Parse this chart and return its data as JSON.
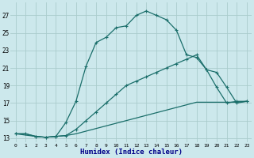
{
  "xlabel": "Humidex (Indice chaleur)",
  "background_color": "#cce8ec",
  "grid_color": "#aacccc",
  "line_color": "#1a6e6a",
  "xlim": [
    -0.5,
    23.5
  ],
  "ylim": [
    12.5,
    28.5
  ],
  "xticks": [
    0,
    1,
    2,
    3,
    4,
    5,
    6,
    7,
    8,
    9,
    10,
    11,
    12,
    13,
    14,
    15,
    16,
    17,
    18,
    19,
    20,
    21,
    22,
    23
  ],
  "yticks": [
    13,
    15,
    17,
    19,
    21,
    23,
    25,
    27
  ],
  "series1_x": [
    0,
    1,
    2,
    3,
    4,
    5,
    6,
    7,
    8,
    9,
    10,
    11,
    12,
    13,
    14,
    15,
    16,
    17,
    18,
    19,
    20,
    21,
    22,
    23
  ],
  "series1_y": [
    13.5,
    13.5,
    13.2,
    13.1,
    13.2,
    14.8,
    17.2,
    21.2,
    23.9,
    24.5,
    25.6,
    25.8,
    27.0,
    27.5,
    27.0,
    26.5,
    25.3,
    22.5,
    22.2,
    20.8,
    18.8,
    17.0,
    17.2,
    17.2
  ],
  "series2_x": [
    0,
    2,
    3,
    4,
    5,
    6,
    7,
    8,
    9,
    10,
    11,
    12,
    13,
    14,
    15,
    16,
    17,
    18,
    19,
    20,
    21,
    22,
    23
  ],
  "series2_y": [
    13.5,
    13.2,
    13.1,
    13.2,
    13.3,
    14.0,
    15.0,
    16.0,
    17.0,
    18.0,
    19.0,
    19.5,
    20.0,
    20.5,
    21.0,
    21.5,
    22.0,
    22.5,
    20.8,
    20.5,
    18.8,
    17.0,
    17.2
  ],
  "series3_x": [
    0,
    1,
    2,
    3,
    4,
    5,
    6,
    7,
    8,
    9,
    10,
    11,
    12,
    13,
    14,
    15,
    16,
    17,
    18,
    19,
    20,
    21,
    22,
    23
  ],
  "series3_y": [
    13.5,
    13.5,
    13.2,
    13.1,
    13.2,
    13.3,
    13.5,
    13.8,
    14.1,
    14.4,
    14.7,
    15.0,
    15.3,
    15.6,
    15.9,
    16.2,
    16.5,
    16.8,
    17.1,
    17.1,
    17.1,
    17.1,
    17.1,
    17.2
  ]
}
